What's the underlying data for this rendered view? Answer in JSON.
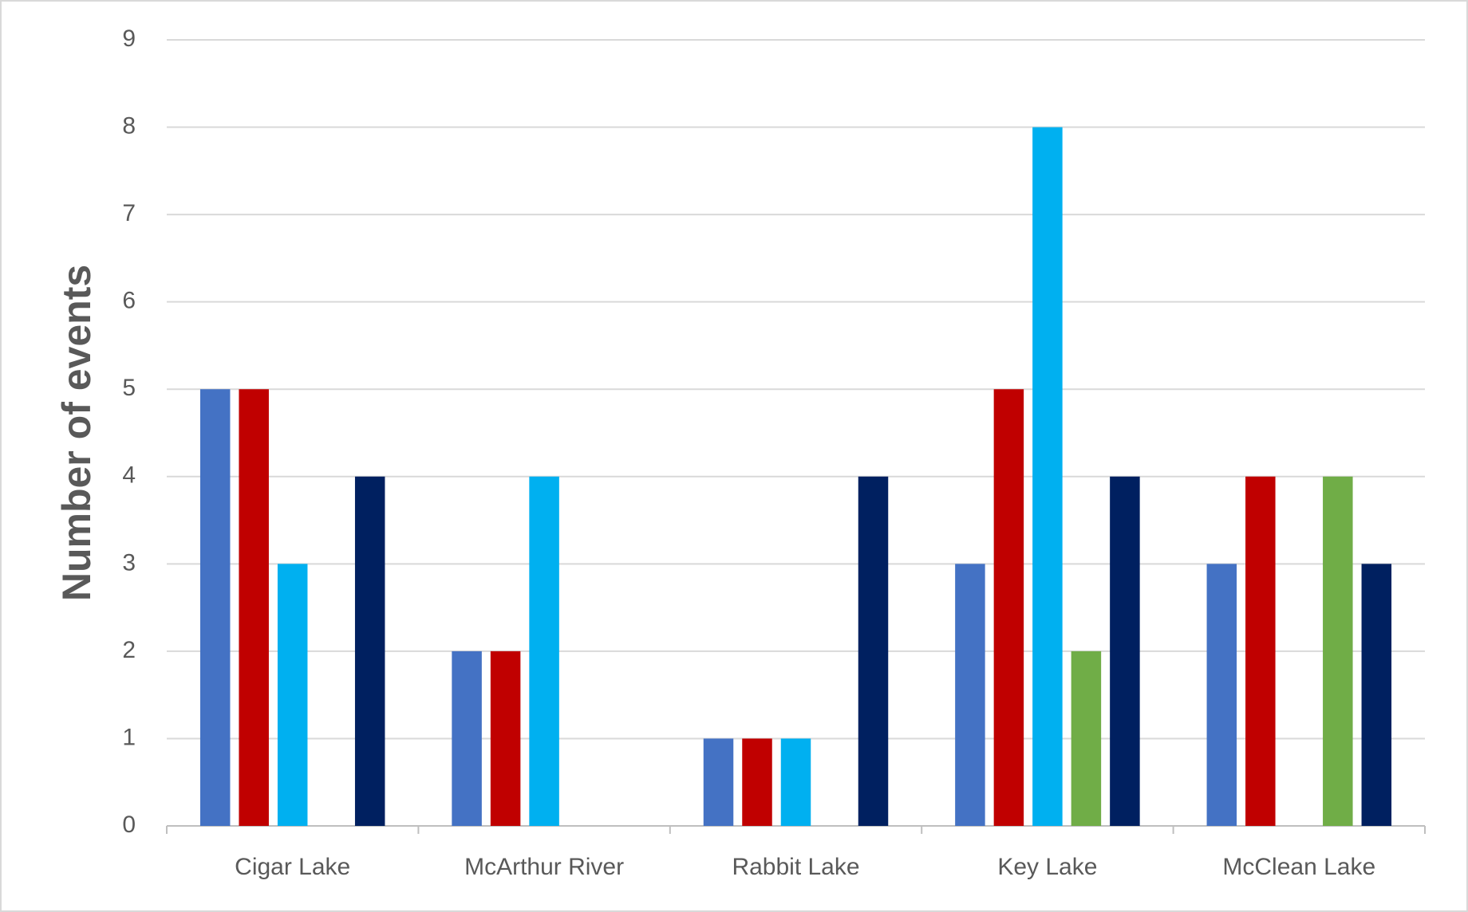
{
  "chart_data": {
    "type": "bar",
    "y_label": "Number of events",
    "categories": [
      "Cigar Lake",
      "McArthur River",
      "Rabbit Lake",
      "Key Lake",
      "McClean Lake"
    ],
    "series": [
      {
        "color": "#4472c4",
        "values": [
          5,
          2,
          1,
          3,
          3
        ]
      },
      {
        "color": "#c00000",
        "values": [
          5,
          2,
          1,
          5,
          4
        ]
      },
      {
        "color": "#00b0f0",
        "values": [
          3,
          4,
          1,
          8,
          0
        ]
      },
      {
        "color": "#70ad47",
        "values": [
          0,
          0,
          0,
          2,
          4
        ]
      },
      {
        "color": "#002060",
        "values": [
          4,
          0,
          4,
          4,
          3
        ]
      }
    ],
    "ylim": [
      0,
      9
    ],
    "yticks": [
      0,
      1,
      2,
      3,
      4,
      5,
      6,
      7,
      8,
      9
    ],
    "grid": true
  }
}
